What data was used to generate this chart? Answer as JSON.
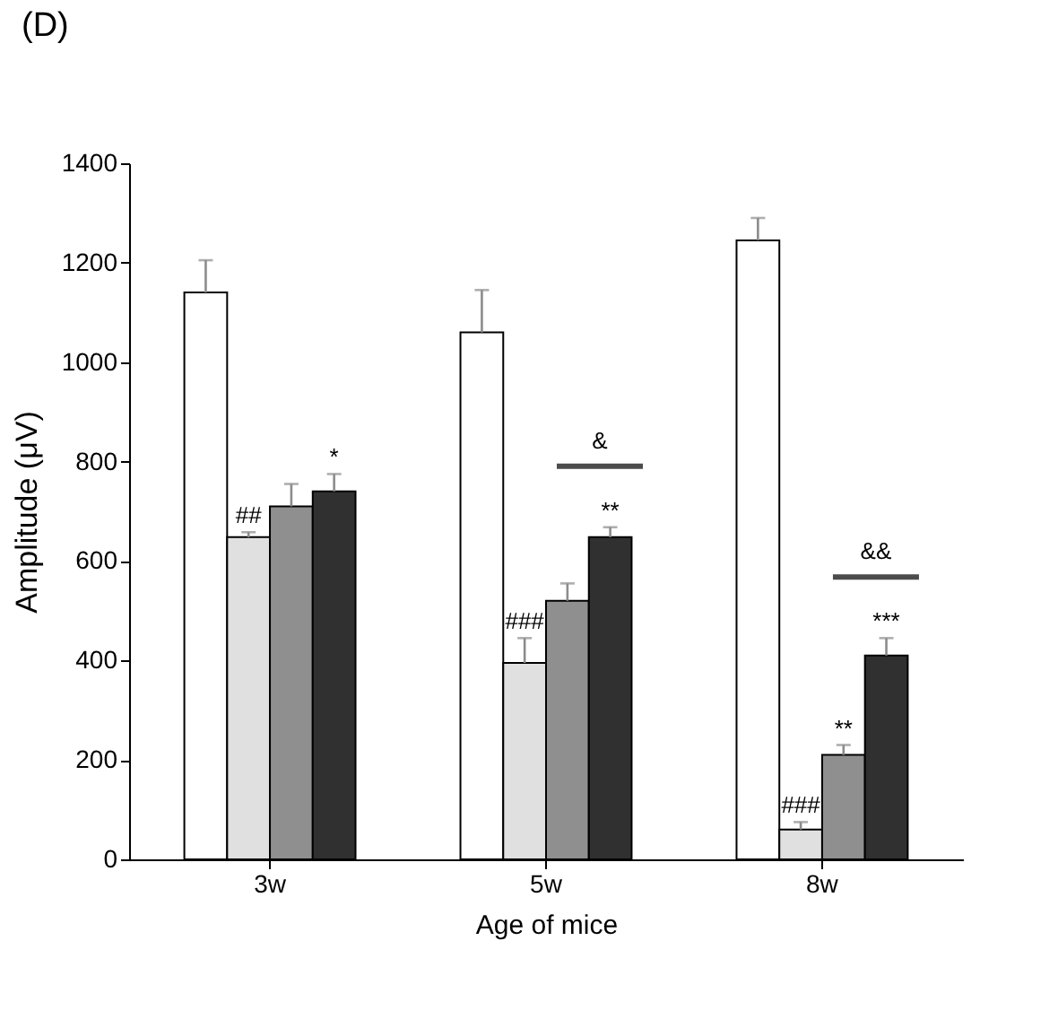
{
  "chart_data": {
    "type": "bar",
    "title": "(D)",
    "xlabel": "Age of mice",
    "ylabel": "Amplitude (μV)",
    "categories": [
      "3w",
      "5w",
      "8w"
    ],
    "series": [
      {
        "color": "#ffffff",
        "values": [
          1140,
          1060,
          1245
        ],
        "errors": [
          65,
          85,
          45
        ]
      },
      {
        "color": "#e0e0e0",
        "values": [
          648,
          395,
          60
        ],
        "errors": [
          10,
          50,
          15
        ],
        "value_labels": [
          "##",
          "###",
          "###"
        ]
      },
      {
        "color": "#8f8f8f",
        "values": [
          710,
          520,
          210
        ],
        "errors": [
          45,
          35,
          20
        ],
        "value_labels": [
          null,
          null,
          "**"
        ]
      },
      {
        "color": "#303030",
        "values": [
          740,
          648,
          410
        ],
        "errors": [
          35,
          20,
          35
        ],
        "value_labels": [
          "*",
          "**",
          "***"
        ]
      }
    ],
    "annotations": [
      "&",
      "&&"
    ],
    "ylim": [
      0,
      1400
    ],
    "yticks": [
      0,
      200,
      400,
      600,
      800,
      1000,
      1200,
      1400
    ],
    "grid": false,
    "legend": false
  }
}
